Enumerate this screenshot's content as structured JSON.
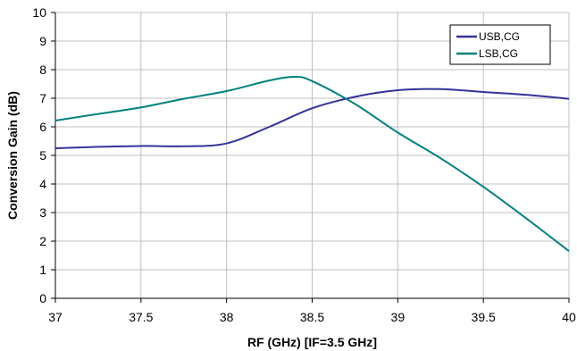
{
  "chart_data": {
    "type": "line",
    "title": "",
    "xlabel": "RF (GHz) [IF=3.5 GHz]",
    "ylabel": "Conversion Gain (dB)",
    "xlim": [
      37,
      40
    ],
    "ylim": [
      0,
      10
    ],
    "xticks": [
      37,
      37.5,
      38,
      38.5,
      39,
      39.5,
      40
    ],
    "yticks": [
      0,
      1,
      2,
      3,
      4,
      5,
      6,
      7,
      8,
      9,
      10
    ],
    "grid": true,
    "legend_position": "top-right",
    "series": [
      {
        "name": "USB,CG",
        "color": "#333399",
        "x": [
          37.0,
          37.25,
          37.5,
          37.75,
          38.0,
          38.25,
          38.5,
          38.75,
          39.0,
          39.25,
          39.5,
          39.75,
          40.0
        ],
        "y": [
          5.25,
          5.3,
          5.33,
          5.32,
          5.42,
          6.0,
          6.65,
          7.05,
          7.28,
          7.32,
          7.22,
          7.12,
          6.98
        ]
      },
      {
        "name": "LSB,CG",
        "color": "#008080",
        "x": [
          37.0,
          37.25,
          37.5,
          37.75,
          38.0,
          38.25,
          38.4,
          38.5,
          38.75,
          39.0,
          39.25,
          39.5,
          39.75,
          40.0
        ],
        "y": [
          6.22,
          6.45,
          6.68,
          6.98,
          7.25,
          7.62,
          7.75,
          7.6,
          6.8,
          5.8,
          4.9,
          3.9,
          2.8,
          1.65
        ]
      }
    ]
  }
}
